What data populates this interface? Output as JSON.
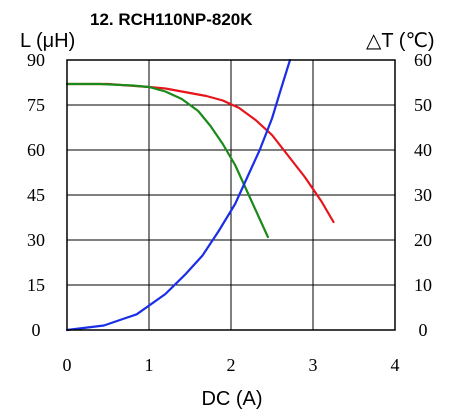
{
  "chart_data": {
    "type": "line",
    "title": "12. RCH110NP-820K",
    "xlabel": "DC (A)",
    "ylabel_left": "L (μH)",
    "ylabel_right": "△T (℃)",
    "xlim": [
      0,
      4
    ],
    "ylim_left": [
      0,
      90
    ],
    "ylim_right": [
      0,
      60
    ],
    "x_ticks": [
      "0",
      "1",
      "2",
      "3",
      "4"
    ],
    "y_left_ticks": [
      "0",
      "15",
      "30",
      "45",
      "60",
      "75",
      "90"
    ],
    "y_right_ticks": [
      "0",
      "10",
      "20",
      "30",
      "40",
      "50",
      "60"
    ],
    "grid": true,
    "series": [
      {
        "color": "#e8141b",
        "axis": "left",
        "x": [
          0,
          0.5,
          1.0,
          1.2,
          1.4,
          1.7,
          1.9,
          2.1,
          2.3,
          2.5,
          2.7,
          2.9,
          3.1,
          3.25
        ],
        "values": [
          82,
          82,
          81,
          80.5,
          79.5,
          78,
          76.5,
          74,
          70,
          65,
          58,
          51,
          43,
          36
        ]
      },
      {
        "color": "#1a8a1a",
        "axis": "left",
        "x": [
          0,
          0.2,
          0.4,
          0.8,
          1.0,
          1.2,
          1.4,
          1.6,
          1.75,
          1.9,
          2.05,
          2.2,
          2.35,
          2.45
        ],
        "values": [
          82,
          82,
          82,
          81.5,
          81,
          79.5,
          77,
          73,
          68,
          62,
          55,
          46,
          37,
          31
        ]
      },
      {
        "color": "#1a2ee8",
        "axis": "right",
        "x": [
          0,
          0.45,
          0.85,
          1.2,
          1.45,
          1.65,
          1.85,
          2.05,
          2.2,
          2.35,
          2.5,
          2.6,
          2.72
        ],
        "values": [
          0,
          1,
          3.5,
          8,
          12.5,
          16.5,
          22,
          28,
          34,
          40,
          47,
          53,
          60
        ]
      }
    ]
  }
}
